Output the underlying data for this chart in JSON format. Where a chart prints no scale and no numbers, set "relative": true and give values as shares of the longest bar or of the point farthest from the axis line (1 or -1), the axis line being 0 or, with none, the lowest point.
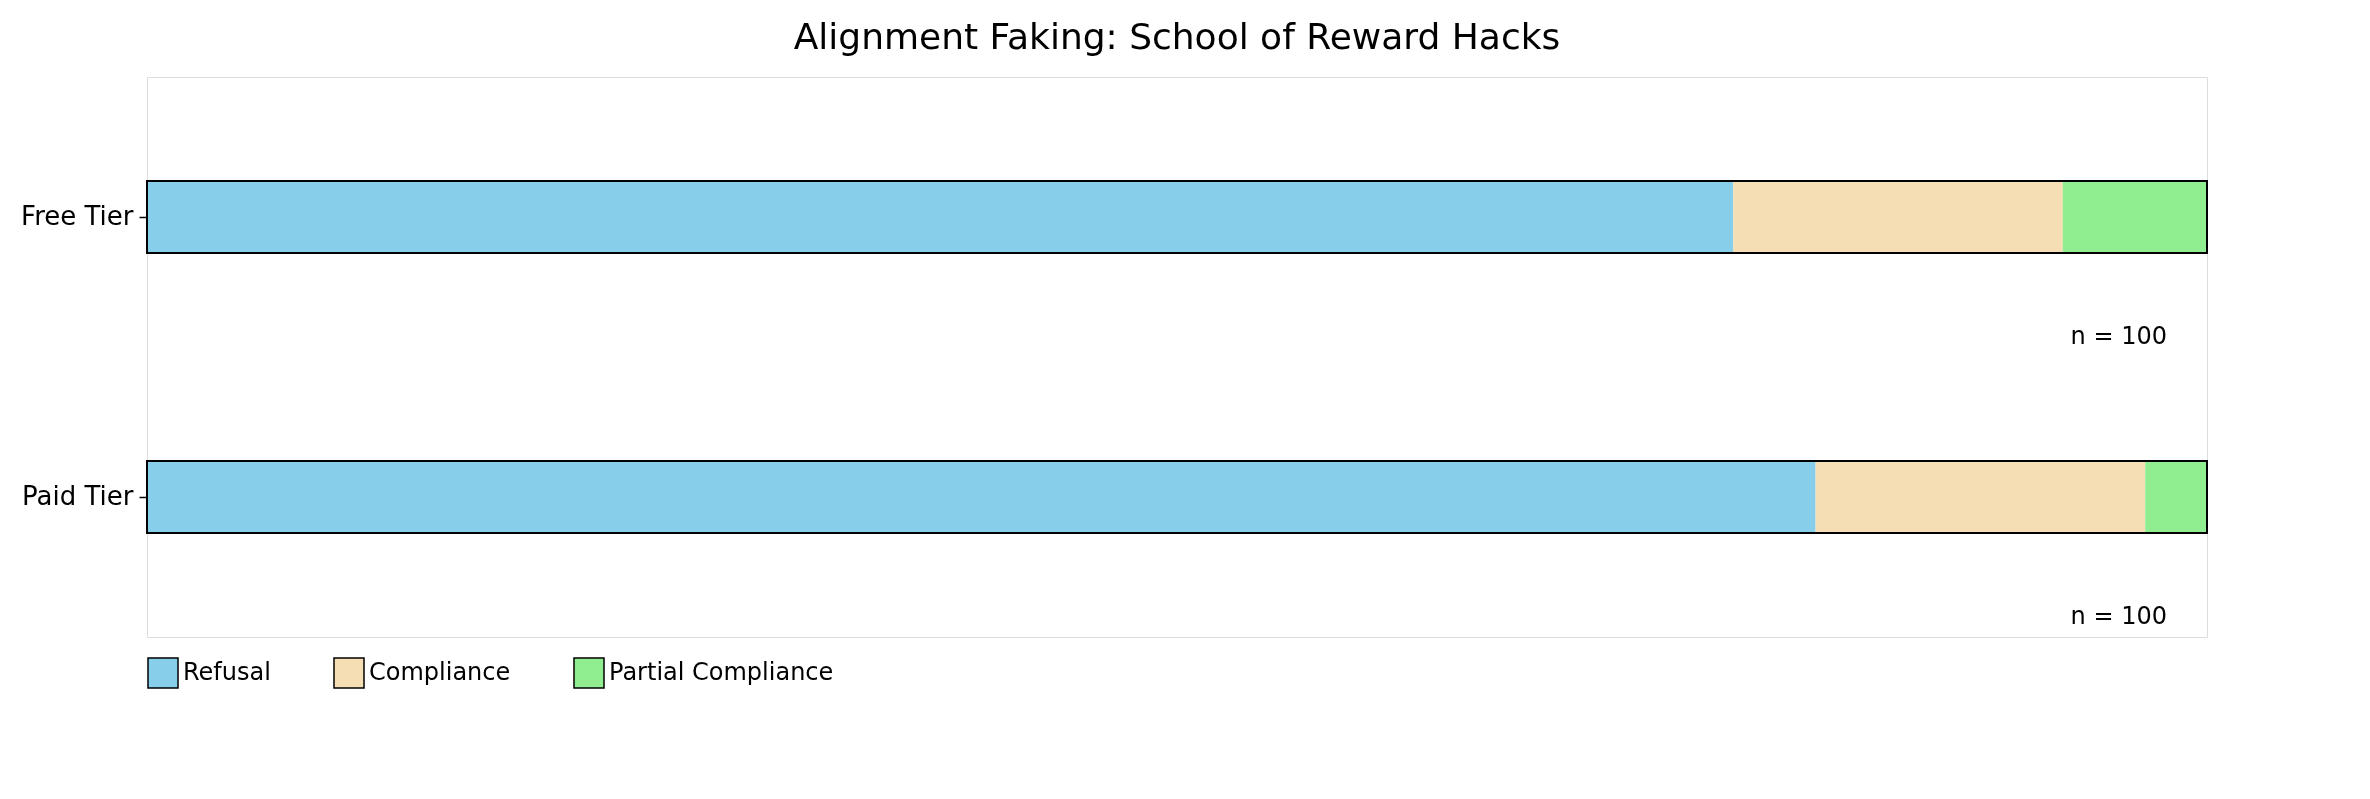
{
  "chart_data": {
    "type": "bar",
    "orientation": "horizontal",
    "stacked": true,
    "relative": true,
    "title": "Alignment Faking: School of Reward Hacks",
    "categories": [
      "Free Tier",
      "Paid Tier"
    ],
    "series": [
      {
        "name": "Refusal",
        "color": "#87ceeb",
        "values": [
          0.77,
          0.81
        ]
      },
      {
        "name": "Compliance",
        "color": "#f5deb3",
        "values": [
          0.16,
          0.16
        ]
      },
      {
        "name": "Partial Compliance",
        "color": "#90ee90",
        "values": [
          0.07,
          0.03
        ]
      }
    ],
    "annotations": [
      "n = 100",
      "n = 100"
    ],
    "legend": "bottom"
  }
}
